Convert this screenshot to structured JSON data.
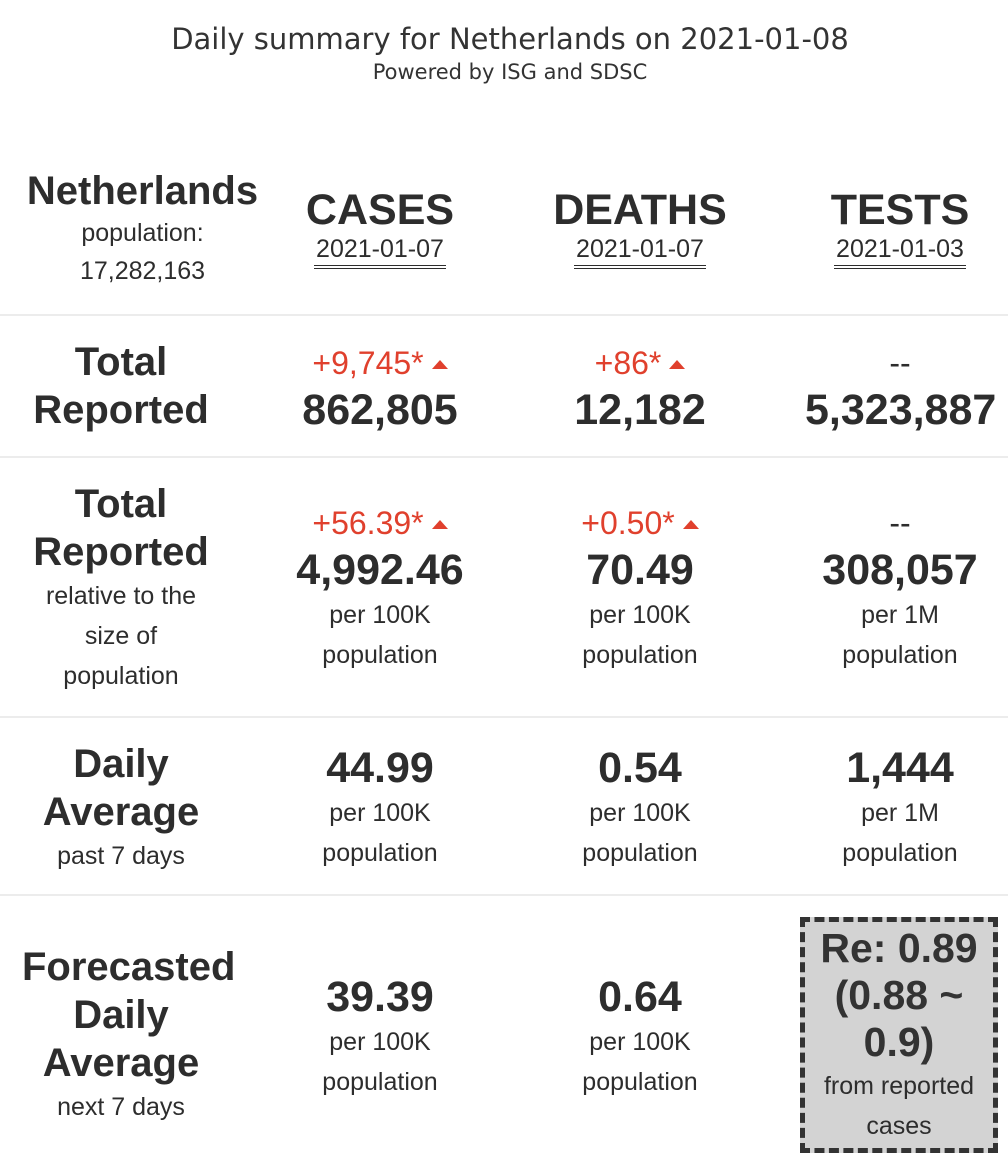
{
  "header": {
    "title": "Daily summary for Netherlands on 2021-01-08",
    "subtitle": "Powered by ISG and SDSC"
  },
  "country": {
    "name": "Netherlands",
    "population_label": "population:",
    "population_value": "17,282,163"
  },
  "columns": [
    {
      "name": "CASES",
      "date": "2021-01-07"
    },
    {
      "name": "DEATHS",
      "date": "2021-01-07"
    },
    {
      "name": "TESTS",
      "date": "2021-01-03"
    }
  ],
  "rows": {
    "total_reported": {
      "label_line1": "Total",
      "label_line2": "Reported",
      "cases": {
        "delta": "+9,745*",
        "value": "862,805"
      },
      "deaths": {
        "delta": "+86*",
        "value": "12,182"
      },
      "tests": {
        "delta": "--",
        "value": "5,323,887"
      }
    },
    "relative": {
      "label_line1": "Total",
      "label_line2": "Reported",
      "sub1": "relative to the",
      "sub2": "size of",
      "sub3": "population",
      "cases": {
        "delta": "+56.39*",
        "value": "4,992.46",
        "unit1": "per 100K",
        "unit2": "population"
      },
      "deaths": {
        "delta": "+0.50*",
        "value": "70.49",
        "unit1": "per 100K",
        "unit2": "population"
      },
      "tests": {
        "delta": "--",
        "value": "308,057",
        "unit1": "per 1M",
        "unit2": "population"
      }
    },
    "daily_average": {
      "label_line1": "Daily",
      "label_line2": "Average",
      "sub": "past 7 days",
      "cases": {
        "value": "44.99",
        "unit1": "per 100K",
        "unit2": "population"
      },
      "deaths": {
        "value": "0.54",
        "unit1": "per 100K",
        "unit2": "population"
      },
      "tests": {
        "value": "1,444",
        "unit1": "per 1M",
        "unit2": "population"
      }
    },
    "forecast": {
      "label_line1": "Forecasted",
      "label_line2": "Daily",
      "label_line3": "Average",
      "sub": "next 7 days",
      "cases": {
        "value": "39.39",
        "unit1": "per 100K",
        "unit2": "population"
      },
      "deaths": {
        "value": "0.64",
        "unit1": "per 100K",
        "unit2": "population"
      },
      "re": {
        "line1": "Re: 0.89",
        "line2": "(0.88 ~",
        "line3": "0.9)",
        "note1": "from reported",
        "note2": "cases"
      }
    }
  },
  "colors": {
    "increase": "#e0402d",
    "text": "#2d2d2d",
    "re_box_bg": "#d3d3d3",
    "divider": "#ececec"
  },
  "icons": {
    "increase": "up-triangle-icon"
  }
}
